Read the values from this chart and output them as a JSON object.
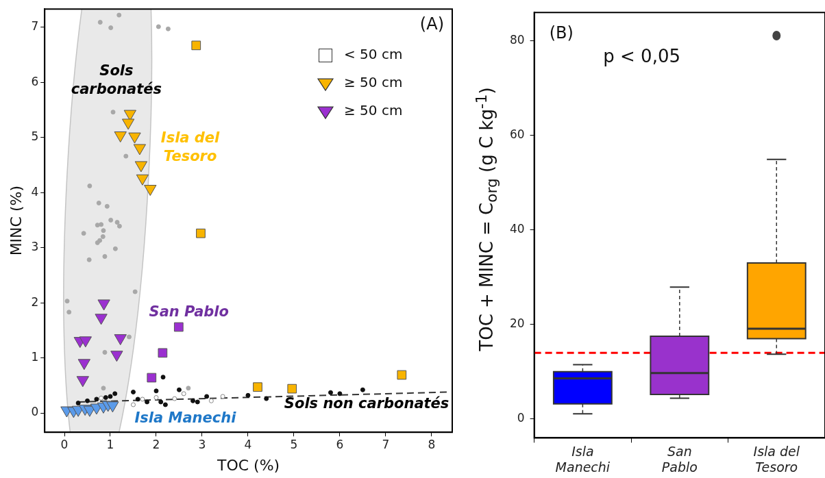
{
  "chart_data": [
    {
      "type": "scatter",
      "title": "(A)",
      "xlabel": "TOC (%)",
      "ylabel": "MINC (%)",
      "xlim": [
        -0.43,
        8.45
      ],
      "ylim": [
        -0.35,
        7.33
      ],
      "xticks": [
        0,
        1,
        2,
        3,
        4,
        5,
        6,
        7,
        8
      ],
      "yticks": [
        0,
        1,
        2,
        3,
        4,
        5,
        6,
        7
      ],
      "legend": "top right",
      "series": [
        {
          "marker": "square",
          "color": "#f8b400",
          "x": [
            2.87,
            2.97,
            4.21,
            4.96,
            7.35
          ],
          "values": [
            6.67,
            3.26,
            0.47,
            0.44,
            0.69
          ]
        },
        {
          "marker": "square",
          "color": "#9b30d0",
          "x": [
            1.9,
            2.14,
            2.49
          ],
          "values": [
            0.64,
            1.09,
            1.56
          ]
        },
        {
          "name": "≥ 50 cm",
          "marker": "triangle",
          "color": "#f8b400",
          "x": [
            1.43,
            1.39,
            1.22,
            1.53,
            1.64,
            1.67,
            1.7,
            1.87
          ],
          "values": [
            5.43,
            5.27,
            5.04,
            5.02,
            4.81,
            4.5,
            4.26,
            4.07
          ]
        },
        {
          "name": "≥ 50 cm",
          "marker": "triangle",
          "color": "#9b30d0",
          "x": [
            0.86,
            0.8,
            0.34,
            0.46,
            1.22,
            1.14,
            0.43,
            0.4
          ],
          "values": [
            1.99,
            1.73,
            1.31,
            1.32,
            1.36,
            1.06,
            0.91,
            0.6
          ]
        },
        {
          "marker": "triangle",
          "color": "#5b9bea",
          "x": [
            0.05,
            0.2,
            0.3,
            0.45,
            0.55,
            0.7,
            0.85,
            0.95,
            1.05
          ],
          "values": [
            0.05,
            0.04,
            0.06,
            0.08,
            0.06,
            0.1,
            0.12,
            0.15,
            0.14
          ]
        },
        {
          "marker": "circle",
          "color": "#a8a8a8",
          "x": [
            1.19,
            0.78,
            1.01,
            2.05,
            2.26,
            1.06,
            1.34,
            0.55,
            0.75,
            0.93,
            1.01,
            0.72,
            0.8,
            1.15,
            1.2,
            0.85,
            0.42,
            0.84,
            0.72,
            0.77,
            1.11,
            0.54,
            0.88,
            0.06,
            0.1,
            1.54,
            1.41,
            0.88,
            0.85,
            2.7
          ],
          "values": [
            7.22,
            7.09,
            6.99,
            7.01,
            6.97,
            5.46,
            4.66,
            4.12,
            3.81,
            3.75,
            3.5,
            3.41,
            3.42,
            3.46,
            3.39,
            3.31,
            3.26,
            3.2,
            3.09,
            3.13,
            2.98,
            2.78,
            2.84,
            2.03,
            1.83,
            2.2,
            1.38,
            1.1,
            0.45,
            0.45
          ]
        },
        {
          "marker": "circle",
          "color": "#111111",
          "x": [
            0.3,
            0.5,
            0.7,
            0.9,
            1.0,
            1.1,
            1.5,
            1.6,
            1.8,
            2.0,
            2.1,
            2.2,
            2.15,
            2.5,
            2.8,
            2.9,
            3.1,
            4.0,
            4.4,
            5.8,
            6.0,
            6.5
          ],
          "values": [
            0.18,
            0.22,
            0.25,
            0.28,
            0.3,
            0.35,
            0.38,
            0.25,
            0.2,
            0.4,
            0.2,
            0.15,
            0.65,
            0.42,
            0.22,
            0.2,
            0.3,
            0.32,
            0.26,
            0.37,
            0.35,
            0.42
          ]
        },
        {
          "marker": "circle",
          "color": "#ffffff",
          "x": [
            0.8,
            1.5,
            1.7,
            2.0,
            2.4,
            2.6,
            3.2,
            3.45
          ],
          "values": [
            0.27,
            0.15,
            0.25,
            0.28,
            0.26,
            0.35,
            0.22,
            0.3
          ]
        },
        {
          "type": "line",
          "line_style": "dashed",
          "color": "#333333",
          "x": [
            0.3,
            8.4
          ],
          "values": [
            0.2,
            0.38
          ]
        }
      ],
      "annotations": [
        "Sols\ncarbonatés",
        "Isla del\nTesoro",
        "San Pablo",
        "Isla Manechi",
        "Sols non carbonatés",
        "< 50 cm"
      ]
    },
    {
      "type": "box",
      "title": "(B)",
      "ylabel": "TOC + MINC = C$_{org}$ (g C kg$^{-1}$)",
      "categories": [
        "Isla Manechi",
        "San Pablo",
        "Isla del Tesoro"
      ],
      "colors": [
        "#0000ff",
        "#9932cc",
        "#ffa500"
      ],
      "ylim": [
        -4,
        86
      ],
      "yticks": [
        0,
        20,
        40,
        60,
        80
      ],
      "boxes": [
        {
          "low": 1.1,
          "q1": 3.2,
          "median": 8.6,
          "q3": 10.0,
          "high": 11.5
        },
        {
          "low": 4.4,
          "q1": 5.2,
          "median": 9.7,
          "q3": 17.5,
          "high": 27.9
        },
        {
          "low": 13.7,
          "q1": 17.0,
          "median": 19.1,
          "q3": 33.0,
          "high": 54.9,
          "outliers": [
            81.1
          ]
        }
      ],
      "ref_lines": [
        {
          "axis": "y",
          "value": 14,
          "color": "#ff0000",
          "line_style": "dashed"
        }
      ],
      "annotations": [
        "p < 0,05"
      ]
    }
  ]
}
